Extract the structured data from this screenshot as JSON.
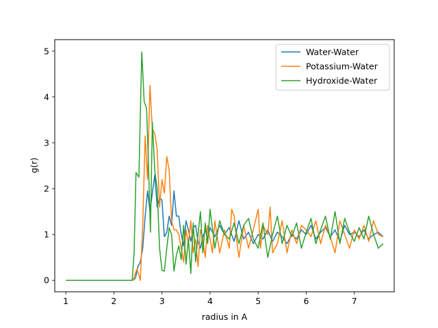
{
  "chart_data": {
    "type": "line",
    "title": "",
    "xlabel": "radius in A",
    "ylabel": "g(r)",
    "xlim": [
      0.77,
      7.83
    ],
    "ylim": [
      -0.25,
      5.25
    ],
    "xticks": [
      "1",
      "2",
      "3",
      "4",
      "5",
      "6",
      "7"
    ],
    "yticks": [
      "0",
      "1",
      "2",
      "3",
      "4",
      "5"
    ],
    "grid": false,
    "legend_position": "top-right",
    "series": [
      {
        "name": "Water-Water",
        "color": "#1f77b4",
        "x": [
          1.0,
          1.5,
          2.0,
          2.3,
          2.4,
          2.45,
          2.5,
          2.55,
          2.6,
          2.65,
          2.7,
          2.75,
          2.8,
          2.85,
          2.9,
          2.95,
          3.0,
          3.05,
          3.1,
          3.15,
          3.2,
          3.25,
          3.3,
          3.35,
          3.4,
          3.45,
          3.5,
          3.55,
          3.6,
          3.65,
          3.7,
          3.75,
          3.8,
          3.85,
          3.9,
          3.95,
          4.0,
          4.1,
          4.2,
          4.3,
          4.4,
          4.5,
          4.6,
          4.7,
          4.8,
          4.9,
          5.0,
          5.1,
          5.2,
          5.3,
          5.4,
          5.5,
          5.6,
          5.7,
          5.8,
          5.9,
          6.0,
          6.1,
          6.2,
          6.3,
          6.4,
          6.5,
          6.6,
          6.7,
          6.8,
          6.9,
          7.0,
          7.1,
          7.2,
          7.3,
          7.4,
          7.5,
          7.6
        ],
        "y": [
          0,
          0,
          0,
          0,
          0,
          0.05,
          0.3,
          0.4,
          0.7,
          1.4,
          1.95,
          1.5,
          1.9,
          2.3,
          1.6,
          1.8,
          1.75,
          0.95,
          1.05,
          1.4,
          1.2,
          1.95,
          1.4,
          1.4,
          1.0,
          0.75,
          1.3,
          1.1,
          0.85,
          1.15,
          1.2,
          0.85,
          0.7,
          0.95,
          1.1,
          0.9,
          1.15,
          0.95,
          1.2,
          1.0,
          1.15,
          0.85,
          1.3,
          0.9,
          1.05,
          0.8,
          1.0,
          0.9,
          1.1,
          0.85,
          1.05,
          0.95,
          0.8,
          1.0,
          0.9,
          1.1,
          1.0,
          1.2,
          0.9,
          1.05,
          1.15,
          0.95,
          1.1,
          0.85,
          1.2,
          1.0,
          1.05,
          0.95,
          1.1,
          0.9,
          1.0,
          1.05,
          0.95
        ]
      },
      {
        "name": "Potassium-Water",
        "color": "#ff7f0e",
        "x": [
          1.0,
          1.5,
          2.0,
          2.4,
          2.48,
          2.55,
          2.6,
          2.65,
          2.7,
          2.75,
          2.8,
          2.85,
          2.9,
          2.95,
          3.0,
          3.05,
          3.1,
          3.15,
          3.2,
          3.25,
          3.3,
          3.35,
          3.4,
          3.45,
          3.5,
          3.55,
          3.6,
          3.65,
          3.7,
          3.75,
          3.8,
          3.85,
          3.9,
          3.95,
          4.0,
          4.05,
          4.1,
          4.2,
          4.3,
          4.4,
          4.45,
          4.5,
          4.55,
          4.6,
          4.7,
          4.8,
          4.9,
          5.0,
          5.05,
          5.1,
          5.2,
          5.25,
          5.3,
          5.4,
          5.5,
          5.6,
          5.7,
          5.8,
          5.9,
          6.0,
          6.1,
          6.2,
          6.3,
          6.4,
          6.5,
          6.6,
          6.7,
          6.8,
          6.9,
          7.0,
          7.1,
          7.2,
          7.3,
          7.4,
          7.5,
          7.6
        ],
        "y": [
          0,
          0,
          0,
          0,
          0.25,
          0.0,
          1.2,
          3.15,
          2.2,
          4.25,
          3.3,
          3.2,
          2.85,
          1.6,
          2.2,
          1.9,
          2.7,
          2.4,
          1.3,
          1.1,
          1.1,
          1.0,
          0.7,
          0.4,
          1.1,
          0.8,
          1.3,
          0.6,
          0.9,
          0.3,
          1.1,
          0.9,
          0.5,
          1.2,
          0.9,
          0.6,
          1.3,
          0.6,
          1.1,
          0.7,
          1.55,
          1.4,
          0.9,
          0.5,
          1.2,
          0.7,
          1.1,
          1.55,
          0.7,
          1.2,
          1.0,
          1.6,
          0.6,
          0.8,
          1.3,
          0.6,
          1.1,
          0.8,
          1.2,
          1.1,
          0.95,
          1.3,
          0.8,
          1.2,
          0.95,
          0.6,
          1.3,
          1.0,
          0.7,
          1.1,
          0.9,
          1.2,
          0.85,
          1.3,
          1.0,
          0.95
        ]
      },
      {
        "name": "Hydroxide-Water",
        "color": "#2ca02c",
        "x": [
          1.0,
          1.5,
          2.0,
          2.38,
          2.42,
          2.46,
          2.52,
          2.58,
          2.63,
          2.68,
          2.72,
          2.76,
          2.8,
          2.85,
          2.9,
          2.95,
          3.0,
          3.05,
          3.1,
          3.15,
          3.2,
          3.25,
          3.3,
          3.35,
          3.4,
          3.45,
          3.5,
          3.55,
          3.6,
          3.65,
          3.7,
          3.75,
          3.8,
          3.85,
          3.9,
          3.95,
          4.0,
          4.1,
          4.2,
          4.3,
          4.4,
          4.5,
          4.6,
          4.7,
          4.8,
          4.9,
          5.0,
          5.1,
          5.2,
          5.3,
          5.4,
          5.5,
          5.6,
          5.7,
          5.8,
          5.9,
          6.0,
          6.1,
          6.2,
          6.3,
          6.4,
          6.5,
          6.6,
          6.7,
          6.8,
          6.9,
          7.0,
          7.1,
          7.2,
          7.3,
          7.4,
          7.5,
          7.6
        ],
        "y": [
          0,
          0,
          0,
          0,
          0.6,
          2.35,
          2.25,
          4.98,
          3.9,
          3.75,
          2.5,
          1.05,
          3.45,
          2.4,
          2.0,
          0.7,
          0.22,
          0.2,
          0.7,
          1.15,
          1.0,
          0.2,
          0.55,
          0.75,
          0.45,
          1.2,
          0.35,
          0.9,
          0.15,
          1.25,
          0.4,
          1.0,
          1.5,
          0.6,
          1.25,
          0.8,
          1.55,
          0.7,
          1.3,
          1.0,
          0.9,
          1.25,
          0.8,
          1.2,
          1.35,
          0.9,
          0.7,
          1.25,
          0.5,
          1.0,
          1.4,
          0.8,
          1.2,
          0.95,
          1.25,
          0.7,
          1.05,
          1.35,
          0.8,
          1.1,
          1.4,
          0.9,
          1.5,
          0.8,
          1.35,
          1.05,
          0.85,
          1.15,
          0.9,
          1.4,
          1.0,
          0.7,
          0.8
        ]
      }
    ]
  }
}
